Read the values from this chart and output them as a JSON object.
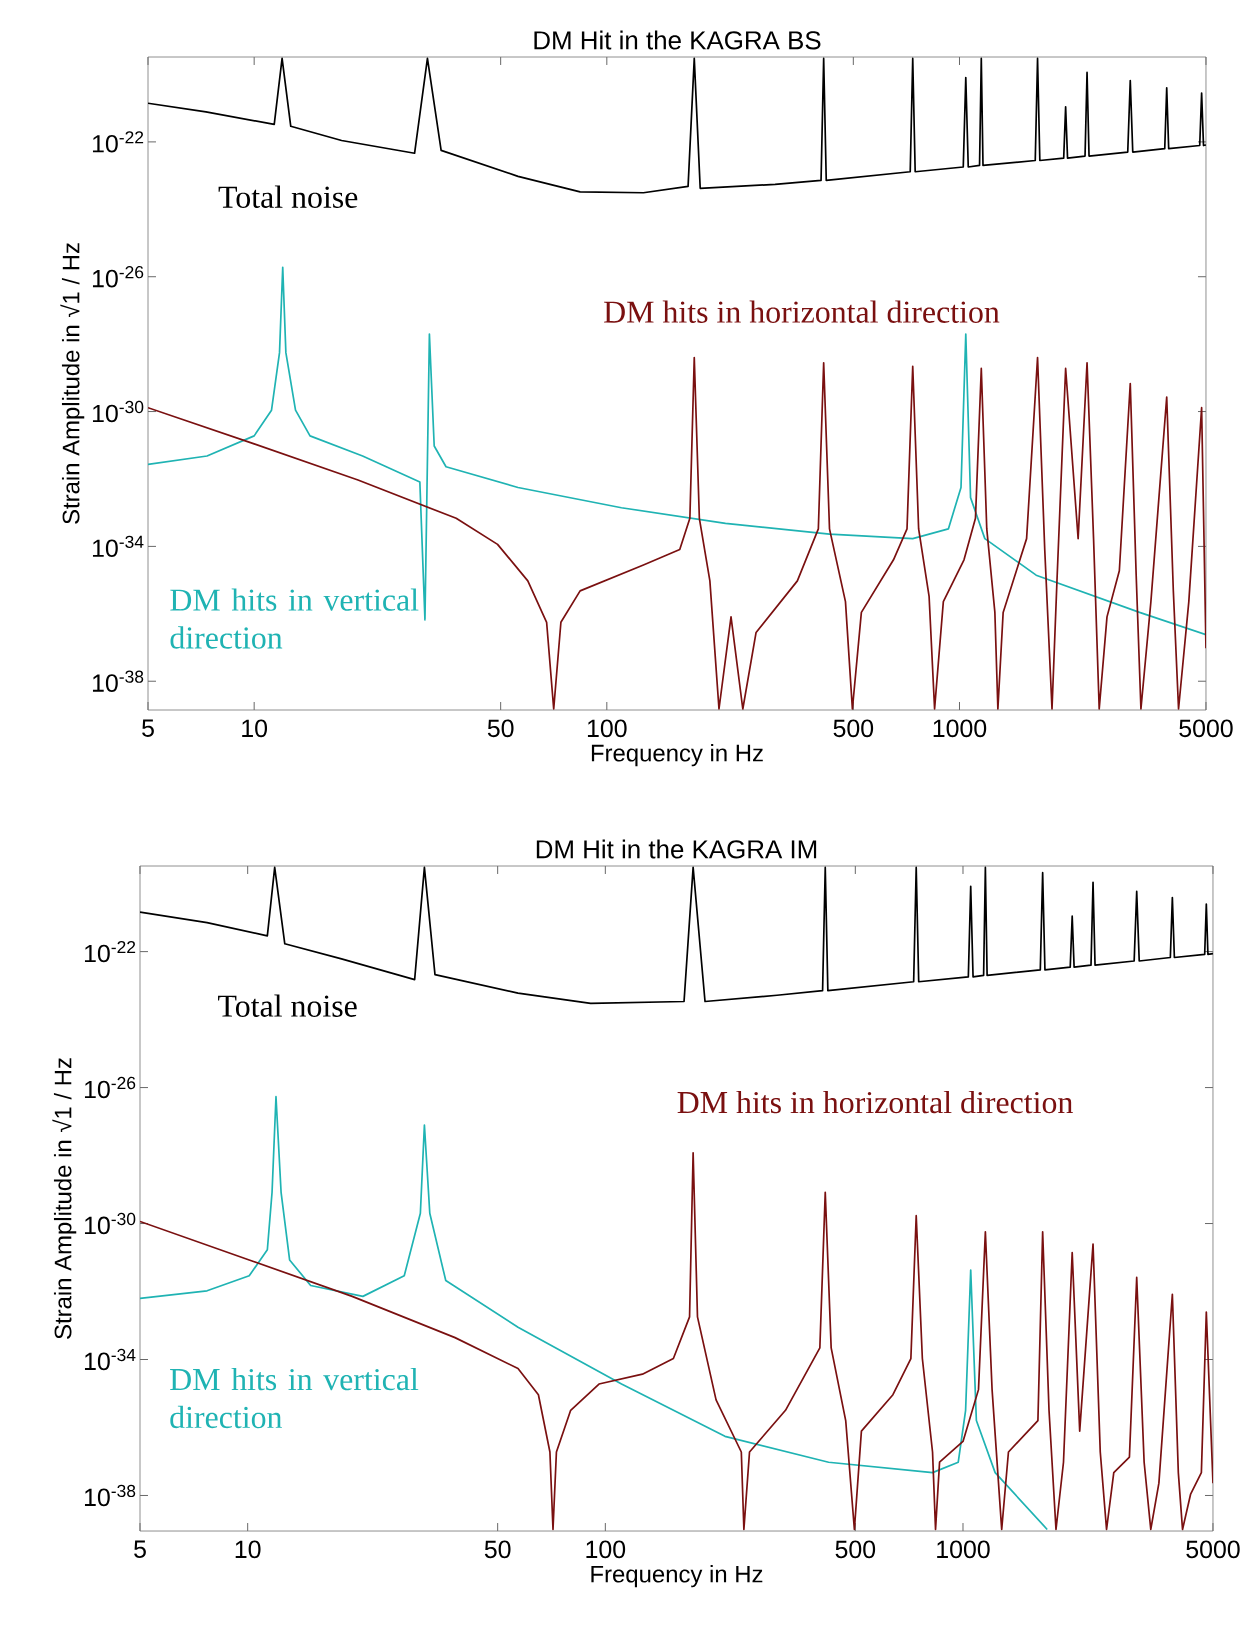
{
  "chart_data": [
    {
      "type": "line",
      "title": "DM Hit in the KAGRA BS",
      "xlabel": "Frequency in Hz",
      "ylabel": "Strain Amplitude in √1 / Hz",
      "log": "xy",
      "xlim": [
        5,
        5000
      ],
      "ylim": [
        1.4e-39,
        3.3e-20
      ],
      "xticks": [
        5,
        10,
        50,
        100,
        500,
        1000,
        5000
      ],
      "yticks": [
        {
          "value": 1e-22,
          "label": "10$^{-22}$"
        },
        {
          "value": 1e-26,
          "label": "10$^{-26}$"
        },
        {
          "value": 1e-30,
          "label": "10$^{-30}$"
        },
        {
          "value": 1e-34,
          "label": "10$^{-34}$"
        },
        {
          "value": 1e-38,
          "label": "10$^{-38}$"
        }
      ],
      "series": [
        {
          "name": "Total noise",
          "color": "#000000",
          "x": [
            5,
            7.3,
            11.4,
            12.0,
            12.7,
            17.7,
            28.5,
            31.0,
            33.9,
            56,
            84,
            127,
            170,
            177,
            184,
            300,
            405,
            412,
            419,
            725,
            737,
            749,
            1025,
            1042,
            1059,
            1140,
            1153,
            1166,
            1640,
            1665,
            1690,
            1975,
            2000,
            2025,
            2270,
            2300,
            2330,
            3000,
            3050,
            3100,
            3820,
            3870,
            3920,
            4800,
            4860,
            4920,
            5000
          ],
          "values": [
            1.4e-21,
            7.8e-22,
            3.3e-22,
            3e-20,
            2.9e-22,
            1.1e-22,
            4.6e-23,
            3e-20,
            5.6e-23,
            9.5e-24,
            3.3e-24,
            3.1e-24,
            4.8e-24,
            3e-20,
            4.2e-24,
            5.5e-24,
            7.2e-24,
            3e-20,
            7.2e-24,
            1.3e-23,
            3e-20,
            1.3e-23,
            1.8e-23,
            8.1e-21,
            1.8e-23,
            2e-23,
            3e-20,
            2e-23,
            2.8e-23,
            3e-20,
            2.8e-23,
            3.3e-23,
            1.1e-21,
            3.3e-23,
            3.8e-23,
            1.15e-20,
            3.8e-23,
            5e-23,
            6.6e-21,
            5e-23,
            6.3e-23,
            4e-21,
            6.3e-23,
            7.8e-23,
            2.8e-21,
            7.8e-23,
            8.1e-23
          ]
        },
        {
          "name": "DM hits in vertical direction",
          "color": "#1fb3b3",
          "x": [
            5,
            7.35,
            10,
            11.2,
            11.8,
            12.05,
            12.3,
            13.1,
            14.4,
            20.3,
            29.5,
            30.5,
            31.4,
            32.4,
            35,
            56,
            110,
            217,
            428,
            737,
            930,
            1010,
            1042,
            1075,
            1180,
            1650,
            3240,
            5000
          ],
          "values": [
            2.7e-32,
            4.8e-32,
            1.9e-31,
            1.1e-30,
            5.6e-29,
            1.9e-26,
            5.6e-29,
            1.1e-30,
            1.9e-31,
            4.8e-32,
            8.1e-33,
            6.6e-37,
            2e-28,
            9.5e-32,
            2.3e-32,
            5.6e-33,
            1.4e-33,
            4.8e-34,
            2.3e-34,
            1.7e-34,
            3.3e-34,
            5.6e-33,
            2e-28,
            2.8e-33,
            1.7e-34,
            1.4e-35,
            1.1e-36,
            2.4e-37
          ]
        },
        {
          "name": "DM hits in horizontal direction",
          "color": "#7a1010",
          "x": [
            5,
            10,
            19.7,
            37.4,
            49,
            59.7,
            67.5,
            70.7,
            74.1,
            84,
            127,
            161,
            172,
            177,
            183,
            196,
            208,
            225,
            243,
            265,
            347,
            398,
            412,
            428,
            475,
            497,
            527,
            650,
            710,
            737,
            766,
            820,
            850,
            900,
            1030,
            1110,
            1153,
            1195,
            1260,
            1285,
            1330,
            1550,
            1665,
            1745,
            1830,
            1890,
            2000,
            2170,
            2300,
            2400,
            2490,
            2620,
            2840,
            3050,
            3170,
            3270,
            3490,
            3870,
            4040,
            4180,
            4470,
            4860,
            5000
          ],
          "values": [
            1.3e-30,
            1.1e-31,
            9.3e-33,
            6.8e-34,
            1.15e-34,
            9.5e-36,
            5.6e-37,
            1.5e-39,
            5.6e-37,
            4.8e-36,
            2.8e-35,
            8.1e-35,
            6.8e-34,
            4e-29,
            6.8e-34,
            9.5e-36,
            1.5e-39,
            8.1e-37,
            1.5e-39,
            2.8e-37,
            9.5e-36,
            3.3e-34,
            2.8e-29,
            3.3e-34,
            2.3e-36,
            1.5e-39,
            1.1e-36,
            4e-35,
            3.3e-34,
            2.2e-29,
            3.3e-34,
            3.3e-36,
            1.5e-39,
            2.3e-36,
            4e-35,
            6.8e-34,
            1.9e-29,
            3.3e-34,
            1.1e-36,
            1.5e-39,
            1.1e-36,
            1.7e-34,
            4e-29,
            8.1e-35,
            1.5e-39,
            9.5e-36,
            1.9e-29,
            1.7e-34,
            2.8e-29,
            1.7e-34,
            1.5e-39,
            8.1e-37,
            1.9e-35,
            6.8e-30,
            1.4e-35,
            1.5e-39,
            2.3e-36,
            2.7e-30,
            4.8e-36,
            1.5e-39,
            2.3e-36,
            1.3e-30,
            9.5e-38
          ]
        }
      ]
    },
    {
      "type": "line",
      "title": "DM Hit in the KAGRA IM",
      "xlabel": "Frequency in Hz",
      "ylabel": "Strain Amplitude in √1 / Hz",
      "log": "xy",
      "xlim": [
        5,
        5000
      ],
      "ylim": [
        9e-40,
        3.3e-20
      ],
      "xticks": [
        5,
        10,
        50,
        100,
        500,
        1000,
        5000
      ],
      "yticks": [
        {
          "value": 1e-22,
          "label": "10$^{-22}$"
        },
        {
          "value": 1e-26,
          "label": "10$^{-26}$"
        },
        {
          "value": 1e-30,
          "label": "10$^{-30}$"
        },
        {
          "value": 1e-34,
          "label": "10$^{-34}$"
        },
        {
          "value": 1e-38,
          "label": "10$^{-38}$"
        }
      ],
      "series": [
        {
          "name": "Total noise",
          "color": "#000000",
          "x": [
            5,
            7.7,
            11.35,
            11.9,
            12.7,
            18.3,
            29.3,
            31.2,
            33.4,
            57,
            91,
            166,
            176,
            190,
            302,
            405,
            412,
            419,
            728,
            740,
            752,
            1035,
            1051,
            1067,
            1142,
            1155,
            1168,
            1645,
            1670,
            1695,
            1995,
            2020,
            2045,
            2280,
            2310,
            2340,
            3010,
            3060,
            3110,
            3800,
            3850,
            3900,
            4740,
            4790,
            4840,
            5000
          ],
          "values": [
            1.45e-21,
            7.1e-22,
            2.9e-22,
            3e-20,
            1.7e-22,
            6.1e-23,
            1.5e-23,
            3e-20,
            2.1e-23,
            6e-24,
            3e-24,
            3.4e-24,
            3e-20,
            3.4e-24,
            5.2e-24,
            7.1e-24,
            3e-20,
            7.1e-24,
            1.3e-23,
            3e-20,
            1.3e-23,
            1.8e-23,
            8.3e-21,
            1.8e-23,
            2e-23,
            3e-20,
            2e-23,
            2.9e-23,
            2.1e-20,
            2.9e-23,
            3.5e-23,
            1.1e-21,
            3.5e-23,
            4e-23,
            1.1e-20,
            4e-23,
            5.3e-23,
            5.9e-21,
            5.3e-23,
            6.7e-23,
            3.9e-21,
            6.7e-23,
            8.3e-23,
            2.5e-21,
            8.3e-23,
            8.7e-23
          ]
        },
        {
          "name": "DM hits in vertical direction",
          "color": "#1fb3b3",
          "x": [
            5,
            7.7,
            10.1,
            11.35,
            11.7,
            12.0,
            12.4,
            13.1,
            15,
            21.0,
            27.4,
            30.4,
            31.2,
            32.3,
            35.8,
            57,
            111,
            216,
            421,
            822,
            970,
            1017,
            1051,
            1090,
            1230,
            1720
          ],
          "values": [
            6.3e-33,
            1.05e-32,
            2.9e-32,
            1.7e-31,
            8.3e-30,
            5.4e-27,
            8.3e-30,
            8.5e-32,
            1.5e-32,
            7.2e-33,
            2.9e-32,
            2e-30,
            7.9e-28,
            2e-30,
            2.1e-32,
            8.9e-34,
            1.9e-35,
            5.5e-37,
            9.5e-38,
            4.7e-38,
            9.5e-38,
            3.2e-36,
            4.3e-32,
            1.6e-36,
            4.7e-38,
            1e-39
          ]
        },
        {
          "name": "DM hits in horizontal direction",
          "color": "#7a1010",
          "x": [
            5,
            10.1,
            19.6,
            38,
            57,
            65,
            70,
            71.4,
            73,
            80,
            96,
            127,
            155,
            172,
            176,
            181,
            204,
            240,
            244,
            253,
            319,
            398,
            412,
            428,
            470,
            497,
            520,
            637,
            715,
            740,
            770,
            822,
            838,
            860,
            1000,
            1105,
            1155,
            1206,
            1283,
            1340,
            1620,
            1670,
            1740,
            1820,
            1910,
            2020,
            2120,
            2310,
            2420,
            2520,
            2640,
            2920,
            3060,
            3210,
            3350,
            3530,
            3850,
            4000,
            4110,
            4330,
            4640,
            4790,
            5000
          ],
          "values": [
            1.15e-30,
            8.5e-32,
            7.2e-33,
            4.4e-34,
            5.4e-35,
            9.2e-36,
            1.9e-37,
            1e-39,
            1.9e-37,
            3.2e-36,
            1.9e-35,
            3.7e-35,
            1.07e-34,
            1.8e-33,
            1.2e-28,
            1.8e-33,
            6.5e-36,
            1.9e-37,
            1e-39,
            1.9e-37,
            3.2e-36,
            2.2e-34,
            8.3e-30,
            2.2e-34,
            1.6e-36,
            1e-39,
            7.8e-37,
            9.2e-36,
            1.07e-34,
            1.7e-30,
            1.07e-34,
            1.9e-37,
            1e-39,
            9.5e-38,
            3.9e-37,
            1.3e-35,
            5.7e-31,
            1.3e-35,
            1e-39,
            1.9e-37,
            1.6e-36,
            5.7e-31,
            3.2e-36,
            1e-39,
            9.5e-38,
            1.4e-31,
            7.8e-37,
            2.5e-31,
            1.9e-37,
            1e-39,
            4.7e-38,
            1.35e-37,
            2.6e-32,
            9.5e-38,
            1e-39,
            2.3e-38,
            8.3e-33,
            4.7e-38,
            1e-39,
            1.1e-38,
            4.7e-38,
            2.5e-33,
            2.3e-38
          ]
        }
      ]
    }
  ]
}
